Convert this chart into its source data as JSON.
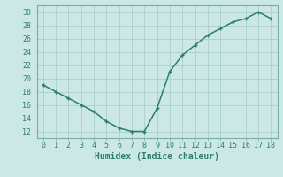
{
  "x": [
    0,
    1,
    2,
    3,
    4,
    5,
    6,
    7,
    8,
    9,
    10,
    11,
    12,
    13,
    14,
    15,
    16,
    17,
    18
  ],
  "y": [
    19,
    18,
    17,
    16,
    15,
    13.5,
    12.5,
    12,
    12,
    15.5,
    21,
    23.5,
    25,
    26.5,
    27.5,
    28.5,
    29,
    30,
    29
  ],
  "line_color": "#2e7d6e",
  "marker": "+",
  "marker_color": "#2e7d6e",
  "bg_color": "#cce8e4",
  "grid_color": "#aacfc9",
  "border_color": "#7aada6",
  "xlabel": "Humidex (Indice chaleur)",
  "xlim": [
    -0.5,
    18.5
  ],
  "ylim": [
    11,
    31
  ],
  "xticks": [
    0,
    1,
    2,
    3,
    4,
    5,
    6,
    7,
    8,
    9,
    10,
    11,
    12,
    13,
    14,
    15,
    16,
    17,
    18
  ],
  "yticks": [
    12,
    14,
    16,
    18,
    20,
    22,
    24,
    26,
    28,
    30
  ],
  "tick_label_fontsize": 6.0,
  "xlabel_fontsize": 7.0,
  "line_width": 1.1,
  "marker_size": 3.5
}
